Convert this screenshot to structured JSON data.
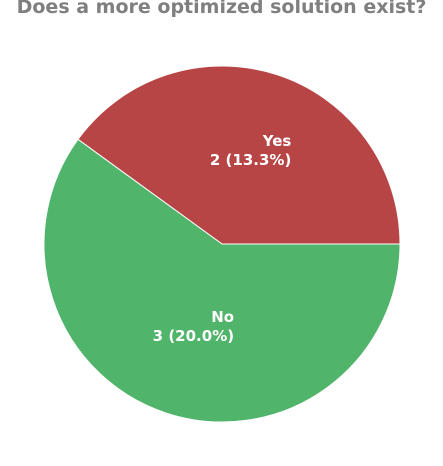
{
  "chart_data": {
    "type": "pie",
    "title": "Does a more optimized solution exist?",
    "slices": [
      {
        "label": "Yes",
        "value": 2,
        "percent_text": "13.3%",
        "color": "#b84545"
      },
      {
        "label": "No",
        "value": 3,
        "percent_text": "20.0%",
        "color": "#50b46a"
      }
    ],
    "legend": "none",
    "start_angle_deg": 0,
    "direction": "counterclockwise"
  }
}
